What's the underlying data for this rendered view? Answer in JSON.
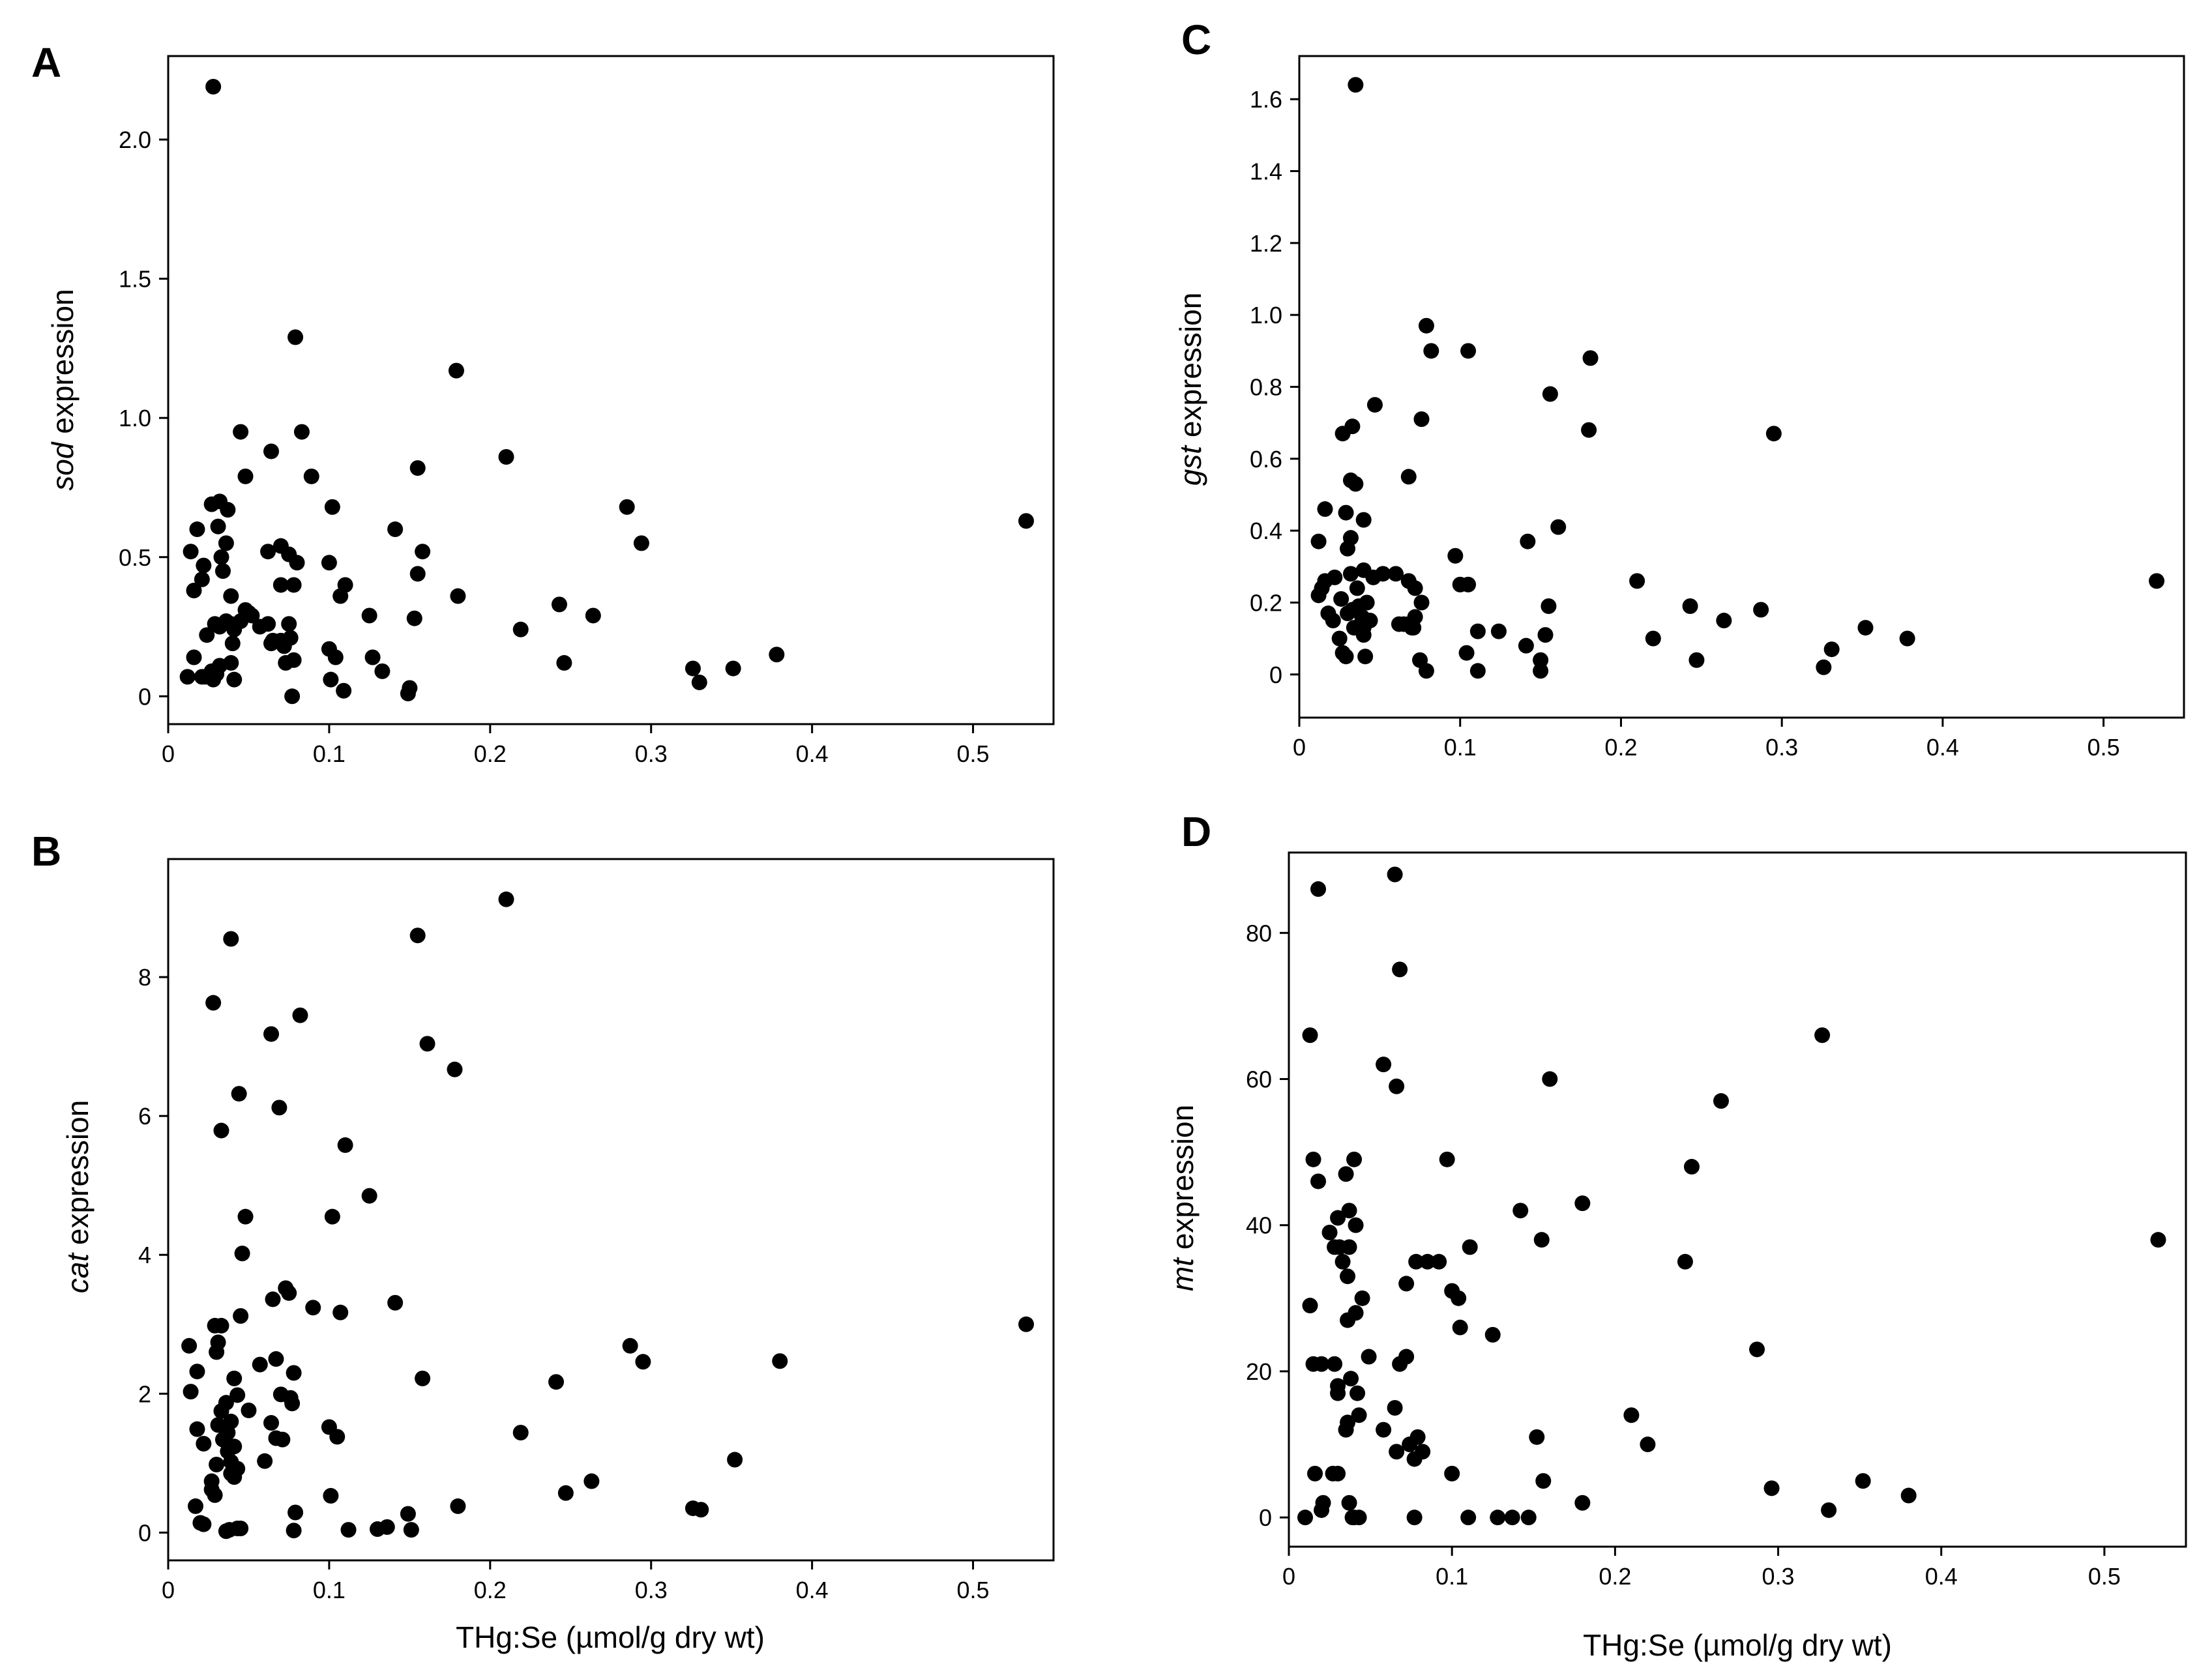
{
  "figure": {
    "xlabel_unit": "THg:Se (µmol/g dry wt)",
    "colors": {
      "marker": "#000000",
      "axis": "#000000",
      "background": "#ffffff"
    }
  },
  "chart_data": [
    {
      "id": "A",
      "type": "scatter",
      "panel_label": "A",
      "ylabel_gene": "sod",
      "ylabel_suffix": " expression",
      "xlabel": "",
      "xlim": [
        0,
        0.55
      ],
      "ylim": [
        -0.1,
        2.3
      ],
      "xticks": [
        0,
        0.1,
        0.2,
        0.3,
        0.4,
        0.5
      ],
      "xtick_labels": [
        "0",
        "0.1",
        "0.2",
        "0.3",
        "0.4",
        "0.5"
      ],
      "yticks": [
        0,
        0.5,
        1.0,
        1.5,
        2.0
      ],
      "ytick_labels": [
        "0",
        "0.5",
        "1.0",
        "1.5",
        "2.0"
      ],
      "x": [
        0.028,
        0.079,
        0.179,
        0.021,
        0.21,
        0.285,
        0.294,
        0.533,
        0.155,
        0.064,
        0.102,
        0.045,
        0.083,
        0.089,
        0.048,
        0.027,
        0.032,
        0.037,
        0.031,
        0.033,
        0.036,
        0.039,
        0.018,
        0.022,
        0.014,
        0.016,
        0.034,
        0.024,
        0.032,
        0.07,
        0.062,
        0.075,
        0.07,
        0.08,
        0.1,
        0.107,
        0.141,
        0.158,
        0.155,
        0.18,
        0.153,
        0.125,
        0.127,
        0.243,
        0.264,
        0.219,
        0.246,
        0.326,
        0.351,
        0.378,
        0.33,
        0.036,
        0.039,
        0.041,
        0.045,
        0.048,
        0.05,
        0.052,
        0.057,
        0.062,
        0.065,
        0.07,
        0.072,
        0.076,
        0.078,
        0.029,
        0.032,
        0.039,
        0.041,
        0.023,
        0.028,
        0.03,
        0.012,
        0.016,
        0.021,
        0.027,
        0.04,
        0.064,
        0.075,
        0.078,
        0.073,
        0.1,
        0.104,
        0.11,
        0.077,
        0.101,
        0.109,
        0.133,
        0.15,
        0.149
      ],
      "y": [
        2.19,
        1.29,
        1.17,
        0.42,
        0.86,
        0.68,
        0.55,
        0.63,
        0.82,
        0.88,
        0.68,
        0.95,
        0.95,
        0.79,
        0.79,
        0.69,
        0.7,
        0.67,
        0.61,
        0.5,
        0.55,
        0.36,
        0.6,
        0.47,
        0.52,
        0.38,
        0.45,
        0.22,
        0.25,
        0.54,
        0.52,
        0.51,
        0.4,
        0.48,
        0.48,
        0.36,
        0.6,
        0.52,
        0.44,
        0.36,
        0.28,
        0.29,
        0.14,
        0.33,
        0.29,
        0.24,
        0.12,
        0.1,
        0.1,
        0.15,
        0.05,
        0.27,
        0.26,
        0.24,
        0.27,
        0.31,
        0.3,
        0.29,
        0.25,
        0.26,
        0.2,
        0.2,
        0.18,
        0.21,
        0.13,
        0.26,
        0.11,
        0.12,
        0.06,
        0.07,
        0.06,
        0.08,
        0.07,
        0.14,
        0.07,
        0.09,
        0.19,
        0.19,
        0.26,
        0.4,
        0.12,
        0.17,
        0.14,
        0.4,
        0.0,
        0.06,
        0.02,
        0.09,
        0.03,
        0.01
      ]
    },
    {
      "id": "B",
      "type": "scatter",
      "panel_label": "B",
      "ylabel_gene": "cat",
      "ylabel_suffix": " expression",
      "xlabel": "THg:Se (µmol/g dry wt)",
      "xlim": [
        0,
        0.55
      ],
      "ylim": [
        -0.4,
        9.7
      ],
      "xticks": [
        0,
        0.1,
        0.2,
        0.3,
        0.4,
        0.5
      ],
      "xtick_labels": [
        "0",
        "0.1",
        "0.2",
        "0.3",
        "0.4",
        "0.5"
      ],
      "yticks": [
        0,
        2,
        4,
        6,
        8
      ],
      "ytick_labels": [
        "0",
        "2",
        "4",
        "6",
        "8"
      ],
      "x": [
        0.21,
        0.039,
        0.155,
        0.028,
        0.082,
        0.064,
        0.161,
        0.178,
        0.044,
        0.069,
        0.033,
        0.11,
        0.125,
        0.102,
        0.048,
        0.046,
        0.073,
        0.075,
        0.065,
        0.09,
        0.141,
        0.107,
        0.533,
        0.045,
        0.029,
        0.033,
        0.031,
        0.013,
        0.03,
        0.287,
        0.295,
        0.38,
        0.067,
        0.057,
        0.018,
        0.041,
        0.014,
        0.241,
        0.158,
        0.07,
        0.078,
        0.077,
        0.064,
        0.043,
        0.036,
        0.033,
        0.039,
        0.031,
        0.037,
        0.018,
        0.022,
        0.034,
        0.041,
        0.037,
        0.039,
        0.03,
        0.05,
        0.06,
        0.02,
        0.1,
        0.105,
        0.219,
        0.076,
        0.067,
        0.071,
        0.043,
        0.041,
        0.039,
        0.036,
        0.027,
        0.027,
        0.029,
        0.017,
        0.022,
        0.101,
        0.079,
        0.18,
        0.136,
        0.263,
        0.247,
        0.352,
        0.326,
        0.331,
        0.038,
        0.043,
        0.045,
        0.078,
        0.112,
        0.13,
        0.149,
        0.151
      ],
      "y": [
        9.12,
        8.55,
        8.6,
        7.63,
        7.45,
        7.18,
        7.04,
        6.67,
        6.32,
        6.12,
        5.79,
        5.58,
        4.85,
        4.55,
        4.55,
        4.02,
        3.52,
        3.45,
        3.36,
        3.24,
        3.31,
        3.17,
        3.0,
        3.12,
        2.98,
        2.98,
        2.74,
        2.69,
        2.6,
        2.69,
        2.46,
        2.47,
        2.5,
        2.42,
        2.32,
        2.22,
        2.03,
        2.17,
        2.22,
        1.99,
        2.3,
        1.86,
        1.58,
        1.98,
        1.87,
        1.75,
        1.6,
        1.55,
        1.44,
        1.49,
        1.28,
        1.34,
        1.24,
        1.17,
        1.02,
        0.98,
        1.76,
        1.03,
        0.14,
        1.52,
        1.38,
        1.44,
        1.94,
        1.36,
        1.34,
        0.92,
        0.8,
        0.85,
        0.02,
        0.62,
        0.74,
        0.54,
        0.38,
        0.12,
        0.53,
        0.29,
        0.38,
        0.08,
        0.74,
        0.57,
        1.05,
        0.35,
        0.33,
        0.04,
        0.06,
        0.06,
        0.03,
        0.04,
        0.05,
        0.27,
        0.04
      ]
    },
    {
      "id": "C",
      "type": "scatter",
      "panel_label": "C",
      "ylabel_gene": "gst",
      "ylabel_suffix": " expression",
      "xlabel": "",
      "xlim": [
        0,
        0.55
      ],
      "ylim": [
        -0.12,
        1.72
      ],
      "xticks": [
        0,
        0.1,
        0.2,
        0.3,
        0.4,
        0.5
      ],
      "xtick_labels": [
        "0",
        "0.1",
        "0.2",
        "0.3",
        "0.4",
        "0.5"
      ],
      "yticks": [
        0,
        0.2,
        0.4,
        0.6,
        0.8,
        1.0,
        1.2,
        1.4,
        1.6
      ],
      "ytick_labels": [
        "0",
        "0.2",
        "0.4",
        "0.6",
        "0.8",
        "1.0",
        "1.2",
        "1.4",
        "1.6"
      ],
      "x": [
        0.035,
        0.079,
        0.082,
        0.105,
        0.181,
        0.156,
        0.047,
        0.076,
        0.033,
        0.18,
        0.295,
        0.027,
        0.068,
        0.032,
        0.035,
        0.161,
        0.016,
        0.029,
        0.04,
        0.032,
        0.052,
        0.142,
        0.012,
        0.016,
        0.022,
        0.032,
        0.036,
        0.04,
        0.046,
        0.06,
        0.068,
        0.072,
        0.097,
        0.1,
        0.105,
        0.21,
        0.03,
        0.026,
        0.03,
        0.018,
        0.012,
        0.014,
        0.033,
        0.037,
        0.039,
        0.042,
        0.068,
        0.072,
        0.076,
        0.155,
        0.243,
        0.264,
        0.287,
        0.021,
        0.025,
        0.027,
        0.034,
        0.04,
        0.062,
        0.065,
        0.07,
        0.071,
        0.104,
        0.111,
        0.124,
        0.141,
        0.153,
        0.22,
        0.352,
        0.378,
        0.533,
        0.04,
        0.029,
        0.041,
        0.044,
        0.075,
        0.079,
        0.111,
        0.15,
        0.15,
        0.247,
        0.326,
        0.331
      ],
      "y": [
        1.64,
        0.97,
        0.9,
        0.9,
        0.88,
        0.78,
        0.75,
        0.71,
        0.69,
        0.68,
        0.67,
        0.67,
        0.55,
        0.54,
        0.53,
        0.41,
        0.46,
        0.45,
        0.43,
        0.38,
        0.28,
        0.37,
        0.37,
        0.26,
        0.27,
        0.28,
        0.24,
        0.29,
        0.27,
        0.28,
        0.26,
        0.24,
        0.33,
        0.25,
        0.25,
        0.26,
        0.35,
        0.21,
        0.17,
        0.17,
        0.22,
        0.24,
        0.18,
        0.19,
        0.16,
        0.2,
        0.14,
        0.16,
        0.2,
        0.19,
        0.19,
        0.15,
        0.18,
        0.15,
        0.1,
        0.06,
        0.13,
        0.13,
        0.14,
        0.14,
        0.13,
        0.13,
        0.06,
        0.12,
        0.12,
        0.08,
        0.11,
        0.1,
        0.13,
        0.1,
        0.26,
        0.11,
        0.05,
        0.05,
        0.15,
        0.04,
        0.01,
        0.01,
        0.04,
        0.01,
        0.04,
        0.02,
        0.07
      ]
    },
    {
      "id": "D",
      "type": "scatter",
      "panel_label": "D",
      "ylabel_gene": "mt",
      "ylabel_suffix": " expression",
      "xlabel": "THg:Se (µmol/g dry wt)",
      "xlim": [
        0,
        0.55
      ],
      "ylim": [
        -4,
        91
      ],
      "xticks": [
        0,
        0.1,
        0.2,
        0.3,
        0.4,
        0.5
      ],
      "xtick_labels": [
        "0",
        "0.1",
        "0.2",
        "0.3",
        "0.4",
        "0.5"
      ],
      "yticks": [
        0,
        20,
        40,
        60,
        80
      ],
      "ytick_labels": [
        "0",
        "20",
        "40",
        "60",
        "80"
      ],
      "x": [
        0.018,
        0.065,
        0.068,
        0.013,
        0.327,
        0.058,
        0.066,
        0.16,
        0.265,
        0.015,
        0.04,
        0.097,
        0.035,
        0.247,
        0.018,
        0.03,
        0.037,
        0.142,
        0.18,
        0.025,
        0.041,
        0.155,
        0.037,
        0.028,
        0.031,
        0.533,
        0.111,
        0.243,
        0.033,
        0.085,
        0.092,
        0.078,
        0.072,
        0.1,
        0.036,
        0.045,
        0.013,
        0.104,
        0.041,
        0.036,
        0.105,
        0.125,
        0.015,
        0.02,
        0.028,
        0.068,
        0.049,
        0.03,
        0.038,
        0.072,
        0.03,
        0.042,
        0.065,
        0.036,
        0.079,
        0.043,
        0.058,
        0.287,
        0.22,
        0.21,
        0.074,
        0.035,
        0.082,
        0.152,
        0.066,
        0.077,
        0.1,
        0.027,
        0.016,
        0.021,
        0.03,
        0.156,
        0.352,
        0.037,
        0.02,
        0.38,
        0.18,
        0.296,
        0.077,
        0.331,
        0.01,
        0.039,
        0.04,
        0.043,
        0.11,
        0.128,
        0.137,
        0.147
      ],
      "y": [
        86,
        88,
        75,
        66,
        66,
        62,
        59,
        60,
        57,
        49,
        49,
        49,
        47,
        48,
        46,
        41,
        42,
        42,
        43,
        39,
        40,
        38,
        37,
        37,
        37,
        38,
        37,
        35,
        35,
        35,
        35,
        35,
        32,
        31,
        33,
        30,
        29,
        30,
        28,
        27,
        26,
        25,
        21,
        21,
        21,
        21,
        22,
        18,
        19,
        22,
        17,
        17,
        15,
        13,
        11,
        14,
        12,
        23,
        10,
        14,
        10,
        12,
        9,
        11,
        9,
        8,
        6,
        6,
        6,
        2,
        6,
        5,
        5,
        2,
        1,
        3,
        2,
        4,
        0,
        1,
        0,
        0,
        0,
        0,
        0,
        0,
        0,
        0
      ]
    }
  ]
}
